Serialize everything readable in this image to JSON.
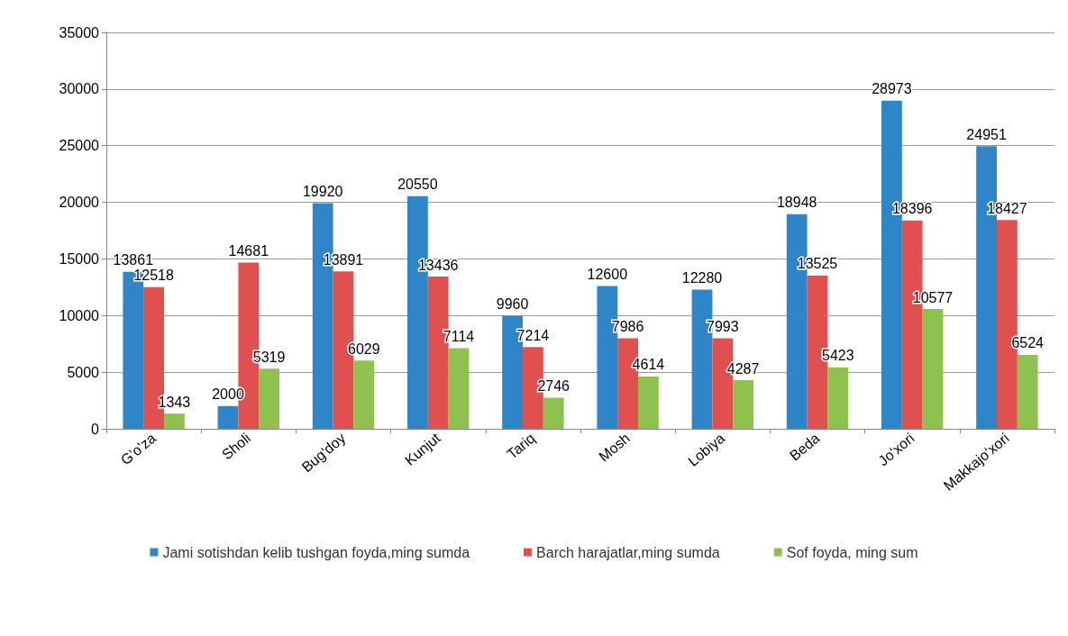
{
  "chart_data": {
    "type": "bar",
    "categories": [
      "G'oʻza",
      "Sholi",
      "Bug'doy",
      "Kunjut",
      "Tariq",
      "Mosh",
      "Lobiya",
      "Beda",
      "Joʻxori",
      "Makkajoʻxori"
    ],
    "series": [
      {
        "name": "Jami sotishdan kelib tushgan foyda,ming sumda",
        "color": "#2e86c9",
        "values": [
          13861,
          2000,
          19920,
          20550,
          9960,
          12600,
          12280,
          18948,
          28973,
          24951
        ]
      },
      {
        "name": "Barch harajatlar,ming sumda",
        "color": "#e0504e",
        "values": [
          12518,
          14681,
          13891,
          13436,
          7214,
          7986,
          7993,
          13525,
          18396,
          18427
        ]
      },
      {
        "name": "Sof foyda, ming sum",
        "color": "#8fc14f",
        "values": [
          1343,
          5319,
          6029,
          7114,
          2746,
          4614,
          4287,
          5423,
          10577,
          6524
        ]
      }
    ],
    "ylim": [
      0,
      35000
    ],
    "yticks": [
      0,
      5000,
      10000,
      15000,
      20000,
      25000,
      30000,
      35000
    ],
    "grid": "y",
    "legend": "bottom",
    "data_labels": true
  }
}
